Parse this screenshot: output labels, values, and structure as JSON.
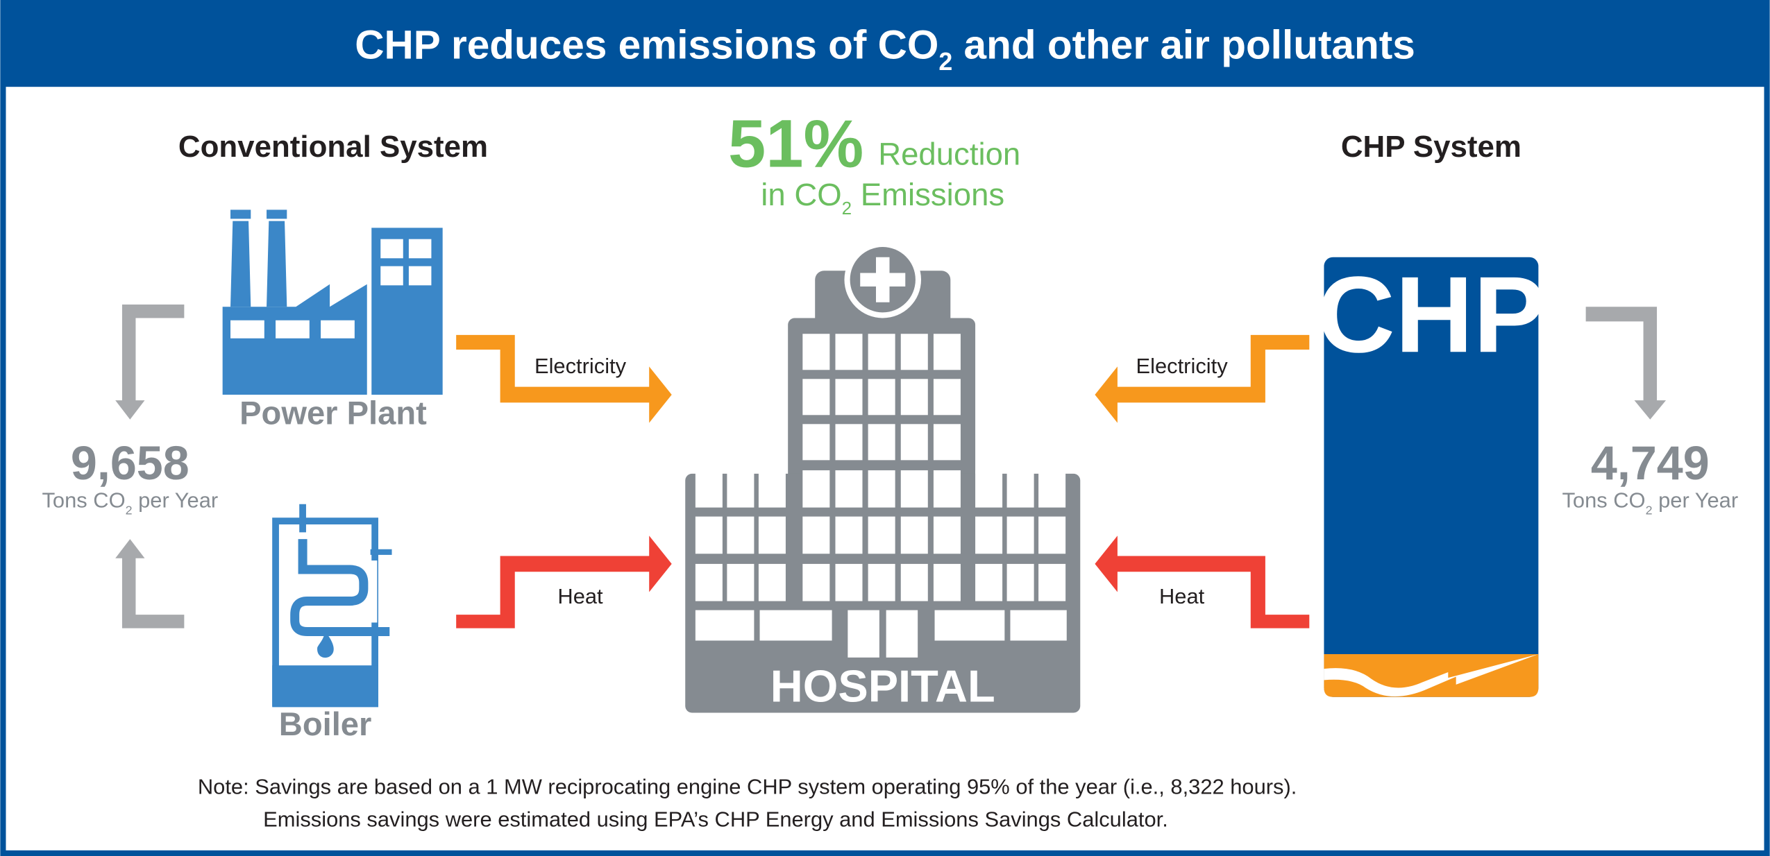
{
  "header": {
    "title_pre": "CHP reduces emissions of CO",
    "title_sub": "2",
    "title_post": " and other air pollutants"
  },
  "conventional": {
    "heading": "Conventional System",
    "power_plant_label": "Power Plant",
    "boiler_label": "Boiler",
    "emissions_value": "9,658",
    "emissions_unit_pre": "Tons CO",
    "emissions_unit_sub": "2",
    "emissions_unit_post": " per Year",
    "electricity_label": "Electricity",
    "heat_label": "Heat"
  },
  "reduction": {
    "percent": "51%",
    "word": "Reduction",
    "line2_pre": "in CO",
    "line2_sub": "2",
    "line2_post": " Emissions"
  },
  "hospital": {
    "label": "HOSPITAL"
  },
  "chp": {
    "heading": "CHP System",
    "logo_text": "CHP",
    "emissions_value": "4,749",
    "emissions_unit_pre": "Tons CO",
    "emissions_unit_sub": "2",
    "emissions_unit_post": " per Year",
    "electricity_label": "Electricity",
    "heat_label": "Heat"
  },
  "note": {
    "line1": "Note: Savings are based on a 1 MW reciprocating engine CHP system operating 95% of the year (i.e., 8,322 hours).",
    "line2": "Emissions savings were estimated using EPA’s CHP Energy and Emissions Savings Calculator."
  },
  "colors": {
    "brand_blue": "#00529B",
    "icon_blue": "#3B87C8",
    "green": "#6BBE5F",
    "orange": "#F7981D",
    "red": "#EF4136",
    "gray": "#858B91",
    "arrow_gray": "#A7A9AC"
  }
}
